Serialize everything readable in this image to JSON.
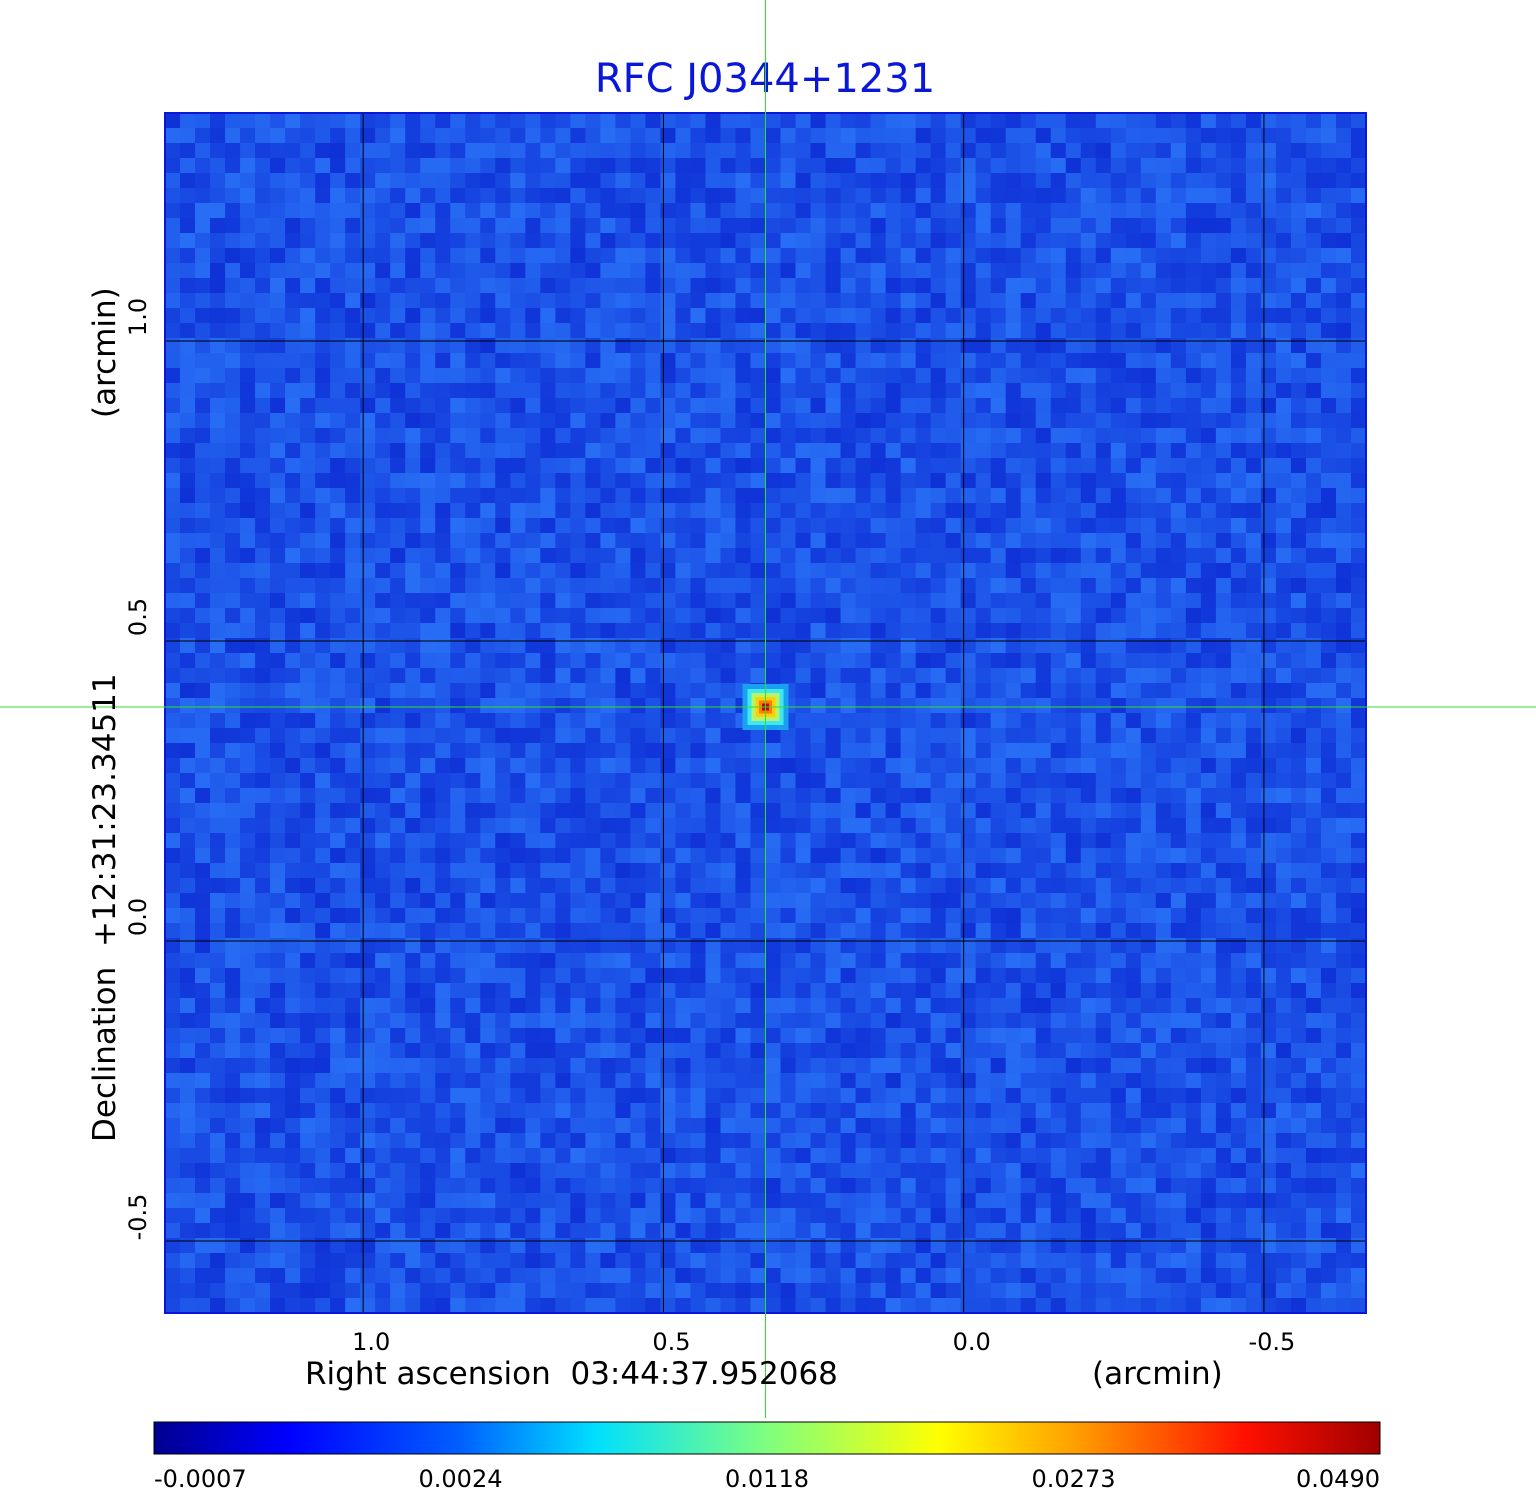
{
  "chart_data": {
    "type": "heatmap",
    "title": "RFC J0344+1231",
    "xlabel": "Right ascension  03:44:37.952068",
    "xlabel_unit": "(arcmin)",
    "ylabel": "Declination  +12:31:23.34511",
    "ylabel_unit": "(arcmin)",
    "x_ticks": [
      1.0,
      0.5,
      0.0,
      -0.5
    ],
    "x_tick_labels": [
      "1.0",
      "0.5",
      "0.0",
      "-0.5"
    ],
    "y_ticks": [
      1.0,
      0.5,
      0.0,
      -0.5
    ],
    "y_tick_labels": [
      "1.0",
      "0.5",
      "0.0",
      "-0.5"
    ],
    "xlim": [
      1.33,
      -0.67
    ],
    "ylim": [
      -0.62,
      1.38
    ],
    "x_inverted": true,
    "grid": true,
    "crosshair": {
      "x": 0.33,
      "y": 0.39
    },
    "source": {
      "x": 0.33,
      "y": 0.39,
      "peak": 0.049
    },
    "colorscale": "jet",
    "colorbar_ticks": [
      -0.0007,
      0.0024,
      0.0118,
      0.0273,
      0.049
    ],
    "colorbar_tick_labels": [
      "-0.0007",
      "0.0024",
      "0.0118",
      "0.0273",
      "0.0490"
    ],
    "colorbar_range": [
      -0.0007,
      0.049
    ]
  }
}
